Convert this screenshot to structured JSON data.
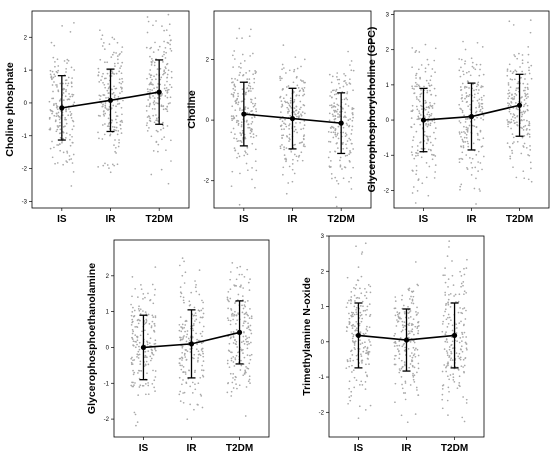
{
  "chart_data": [
    {
      "type": "scatter",
      "ylabel": "Choline phosphate",
      "categories": [
        "IS",
        "IR",
        "T2DM"
      ],
      "ylim": [
        -3.2,
        2.8
      ],
      "yticks": [
        -3,
        -2,
        -1,
        0,
        1,
        2
      ],
      "mean": [
        -0.15,
        0.08,
        0.33
      ],
      "sd": [
        0.98,
        0.95,
        0.98
      ],
      "points_per_group": 190
    },
    {
      "type": "scatter",
      "ylabel": "Choline",
      "categories": [
        "IS",
        "IR",
        "T2DM"
      ],
      "ylim": [
        -2.9,
        3.6
      ],
      "yticks": [
        -2,
        0,
        2
      ],
      "mean": [
        0.2,
        0.05,
        -0.1
      ],
      "sd": [
        1.05,
        1.0,
        1.0
      ],
      "points_per_group": 190
    },
    {
      "type": "scatter",
      "ylabel": "Glycerophosphorylcholine (GPC)",
      "categories": [
        "IS",
        "IR",
        "T2DM"
      ],
      "ylim": [
        -2.5,
        3.1
      ],
      "yticks": [
        -2,
        -1,
        0,
        1,
        2,
        3
      ],
      "mean": [
        0.0,
        0.1,
        0.42
      ],
      "sd": [
        0.9,
        0.95,
        0.88
      ],
      "points_per_group": 190
    },
    {
      "type": "scatter",
      "ylabel": "Glycerophosphoethanolamine",
      "categories": [
        "IS",
        "IR",
        "T2DM"
      ],
      "ylim": [
        -2.5,
        3.0
      ],
      "yticks": [
        -2,
        -1,
        0,
        1,
        2
      ],
      "mean": [
        0.0,
        0.1,
        0.42
      ],
      "sd": [
        0.9,
        0.95,
        0.88
      ],
      "points_per_group": 190
    },
    {
      "type": "scatter",
      "ylabel": "Trimethylamine N-oxide",
      "categories": [
        "IS",
        "IR",
        "T2DM"
      ],
      "ylim": [
        -2.7,
        3.0
      ],
      "yticks": [
        -2,
        -1,
        0,
        1,
        2,
        3
      ],
      "mean": [
        0.18,
        0.05,
        0.18
      ],
      "sd": [
        0.92,
        0.88,
        0.92
      ],
      "points_per_group": 190
    }
  ],
  "colors": {
    "points": "#a8a8a8",
    "summary": "#000000",
    "frame": "#000000"
  }
}
